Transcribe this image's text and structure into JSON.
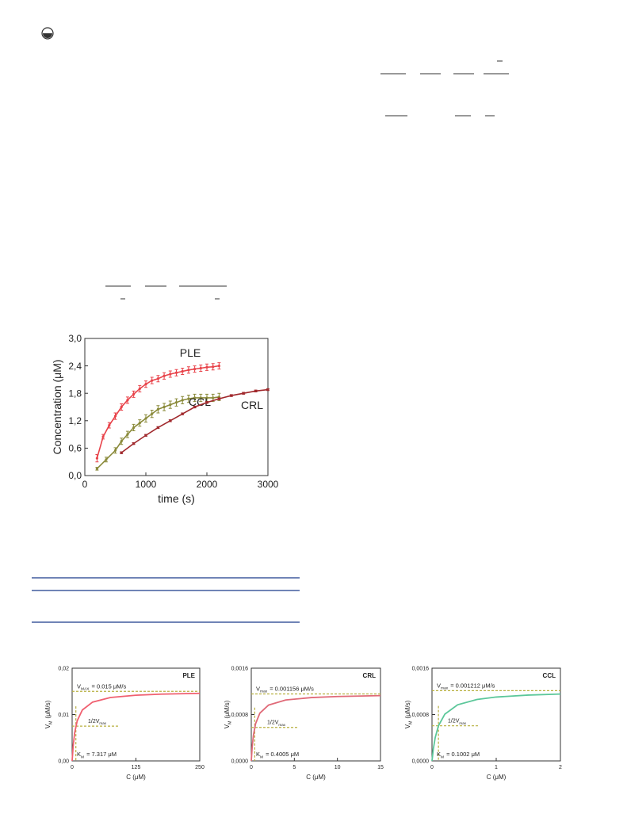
{
  "chart_data": [
    {
      "type": "errorline",
      "xlabel": "time (s)",
      "ylabel": "Concentration (μM)",
      "xlim": [
        0,
        3000
      ],
      "xticks": [
        0,
        1000,
        2000,
        3000
      ],
      "ylim": [
        0,
        3
      ],
      "yticks": [
        {
          "value": 0,
          "label": "0,0"
        },
        {
          "value": 0.6,
          "label": "0,6"
        },
        {
          "value": 1.2,
          "label": "1,2"
        },
        {
          "value": 1.8,
          "label": "1,8"
        },
        {
          "value": 2.4,
          "label": "2,4"
        },
        {
          "value": 3,
          "label": "3,0"
        }
      ],
      "series": [
        {
          "name": "PLE",
          "color": "#e8434a",
          "x": [
            200,
            300,
            400,
            500,
            600,
            700,
            800,
            900,
            1000,
            1100,
            1200,
            1300,
            1400,
            1500,
            1600,
            1700,
            1800,
            1900,
            2000,
            2100,
            2200
          ],
          "values": [
            0.38,
            0.85,
            1.1,
            1.3,
            1.5,
            1.65,
            1.78,
            1.9,
            2.0,
            2.08,
            2.12,
            2.18,
            2.22,
            2.25,
            2.28,
            2.31,
            2.33,
            2.35,
            2.37,
            2.38,
            2.4
          ],
          "errors": [
            0.08,
            0.05,
            0.06,
            0.07,
            0.07,
            0.07,
            0.07,
            0.07,
            0.07,
            0.07,
            0.07,
            0.07,
            0.07,
            0.07,
            0.07,
            0.07,
            0.07,
            0.07,
            0.07,
            0.07,
            0.07
          ]
        },
        {
          "name": "CCL",
          "color": "#8a8a3a",
          "x": [
            200,
            350,
            500,
            600,
            700,
            800,
            900,
            1000,
            1100,
            1200,
            1300,
            1400,
            1500,
            1600,
            1700,
            1800,
            1900,
            2000,
            2100,
            2200
          ],
          "values": [
            0.15,
            0.35,
            0.55,
            0.75,
            0.9,
            1.05,
            1.15,
            1.25,
            1.35,
            1.45,
            1.5,
            1.55,
            1.6,
            1.65,
            1.68,
            1.7,
            1.7,
            1.7,
            1.7,
            1.72
          ],
          "errors": [
            0.03,
            0.05,
            0.06,
            0.07,
            0.07,
            0.07,
            0.07,
            0.08,
            0.08,
            0.08,
            0.08,
            0.08,
            0.08,
            0.08,
            0.08,
            0.08,
            0.08,
            0.08,
            0.08,
            0.08
          ]
        },
        {
          "name": "CRL",
          "color": "#a0282c",
          "x": [
            600,
            800,
            1000,
            1200,
            1400,
            1600,
            1800,
            2000,
            2200,
            2400,
            2600,
            2800,
            3000
          ],
          "values": [
            0.5,
            0.7,
            0.88,
            1.05,
            1.2,
            1.35,
            1.5,
            1.6,
            1.68,
            1.75,
            1.8,
            1.85,
            1.88
          ],
          "errors": [
            0.02,
            0.02,
            0.02,
            0.02,
            0.02,
            0.02,
            0.02,
            0.02,
            0.02,
            0.02,
            0.02,
            0.02,
            0.02
          ]
        }
      ]
    },
    {
      "type": "mm",
      "title": "PLE",
      "xlabel": "C (μM)",
      "ylabel": {
        "main": "V",
        "sub": "M",
        "rest": "(μM/s)"
      },
      "xlim": [
        0,
        250
      ],
      "xticks": [
        0,
        125,
        250
      ],
      "ylim": [
        0,
        0.02
      ],
      "yticks": [
        {
          "value": 0,
          "label": "0,00"
        },
        {
          "value": 0.01,
          "label": "0,01"
        },
        {
          "value": 0.02,
          "label": "0,02"
        }
      ],
      "color": "#f06070",
      "x": [
        0,
        2,
        5,
        10,
        20,
        40,
        75,
        125,
        175,
        250
      ],
      "values": [
        0,
        0.00322,
        0.00609,
        0.00866,
        0.01098,
        0.01268,
        0.01367,
        0.01417,
        0.0144,
        0.01457
      ],
      "vmax_line": 0.015,
      "half_line": 0.0075,
      "km_line": 7.317,
      "vmax_label": {
        "main": "V",
        "sub": "MAX",
        "rest": "= 0.015 μM/s"
      },
      "half_label": {
        "main": "1/2V",
        "sub": "max"
      },
      "km_label": {
        "main": "K",
        "sub": "M",
        "rest": "= 7.317 μM"
      }
    },
    {
      "type": "mm",
      "title": "CRL",
      "xlabel": "C (μM)",
      "ylabel": {
        "main": "V",
        "sub": "M",
        "rest": "(μM/s)"
      },
      "xlim": [
        0,
        15
      ],
      "xticks": [
        0,
        5,
        10,
        15
      ],
      "ylim": [
        0,
        0.0016
      ],
      "yticks": [
        {
          "value": 0,
          "label": "0,0000"
        },
        {
          "value": 0.0008,
          "label": "0,0008"
        },
        {
          "value": 0.0016,
          "label": "0,0016"
        }
      ],
      "color": "#e06a78",
      "x": [
        0,
        0.1,
        0.25,
        0.5,
        1,
        2,
        4,
        7,
        10,
        15
      ],
      "values": [
        0,
        0.000231,
        0.000444,
        0.000642,
        0.000825,
        0.000963,
        0.001051,
        0.001093,
        0.001111,
        0.001126
      ],
      "vmax_line": 0.001156,
      "half_line": 0.000578,
      "km_line": 0.4005,
      "vmax_label": {
        "main": "V",
        "sub": "max",
        "rest": "= 0.001156 μM/s"
      },
      "half_label": {
        "main": "1/2V",
        "sub": "max"
      },
      "km_label": {
        "main": "K",
        "sub": "M",
        "rest": "= 0.4005 μM"
      }
    },
    {
      "type": "mm",
      "title": "CCL",
      "xlabel": "C (μM)",
      "ylabel": {
        "main": "V",
        "sub": "M",
        "rest": "(μM/s)"
      },
      "xlim": [
        0,
        2
      ],
      "xticks": [
        0,
        1,
        2
      ],
      "ylim": [
        0,
        0.0016
      ],
      "yticks": [
        {
          "value": 0,
          "label": "0,0000"
        },
        {
          "value": 0.0008,
          "label": "0,0008"
        },
        {
          "value": 0.0016,
          "label": "0,0016"
        }
      ],
      "color": "#5cc79a",
      "x": [
        0,
        0.02,
        0.05,
        0.1,
        0.2,
        0.4,
        0.7,
        1,
        1.5,
        2
      ],
      "values": [
        0,
        0.000202,
        0.000403,
        0.000605,
        0.000807,
        0.000969,
        0.00106,
        0.001102,
        0.001136,
        0.001154
      ],
      "vmax_line": 0.001212,
      "half_line": 0.000606,
      "km_line": 0.1002,
      "vmax_label": {
        "main": "V",
        "sub": "max",
        "rest": "= 0.001212 μM/s"
      },
      "half_label": {
        "main": "1/2V",
        "sub": "max"
      },
      "km_label": {
        "main": "K",
        "sub": "M",
        "rest": "= 0.1002 μM"
      }
    }
  ]
}
